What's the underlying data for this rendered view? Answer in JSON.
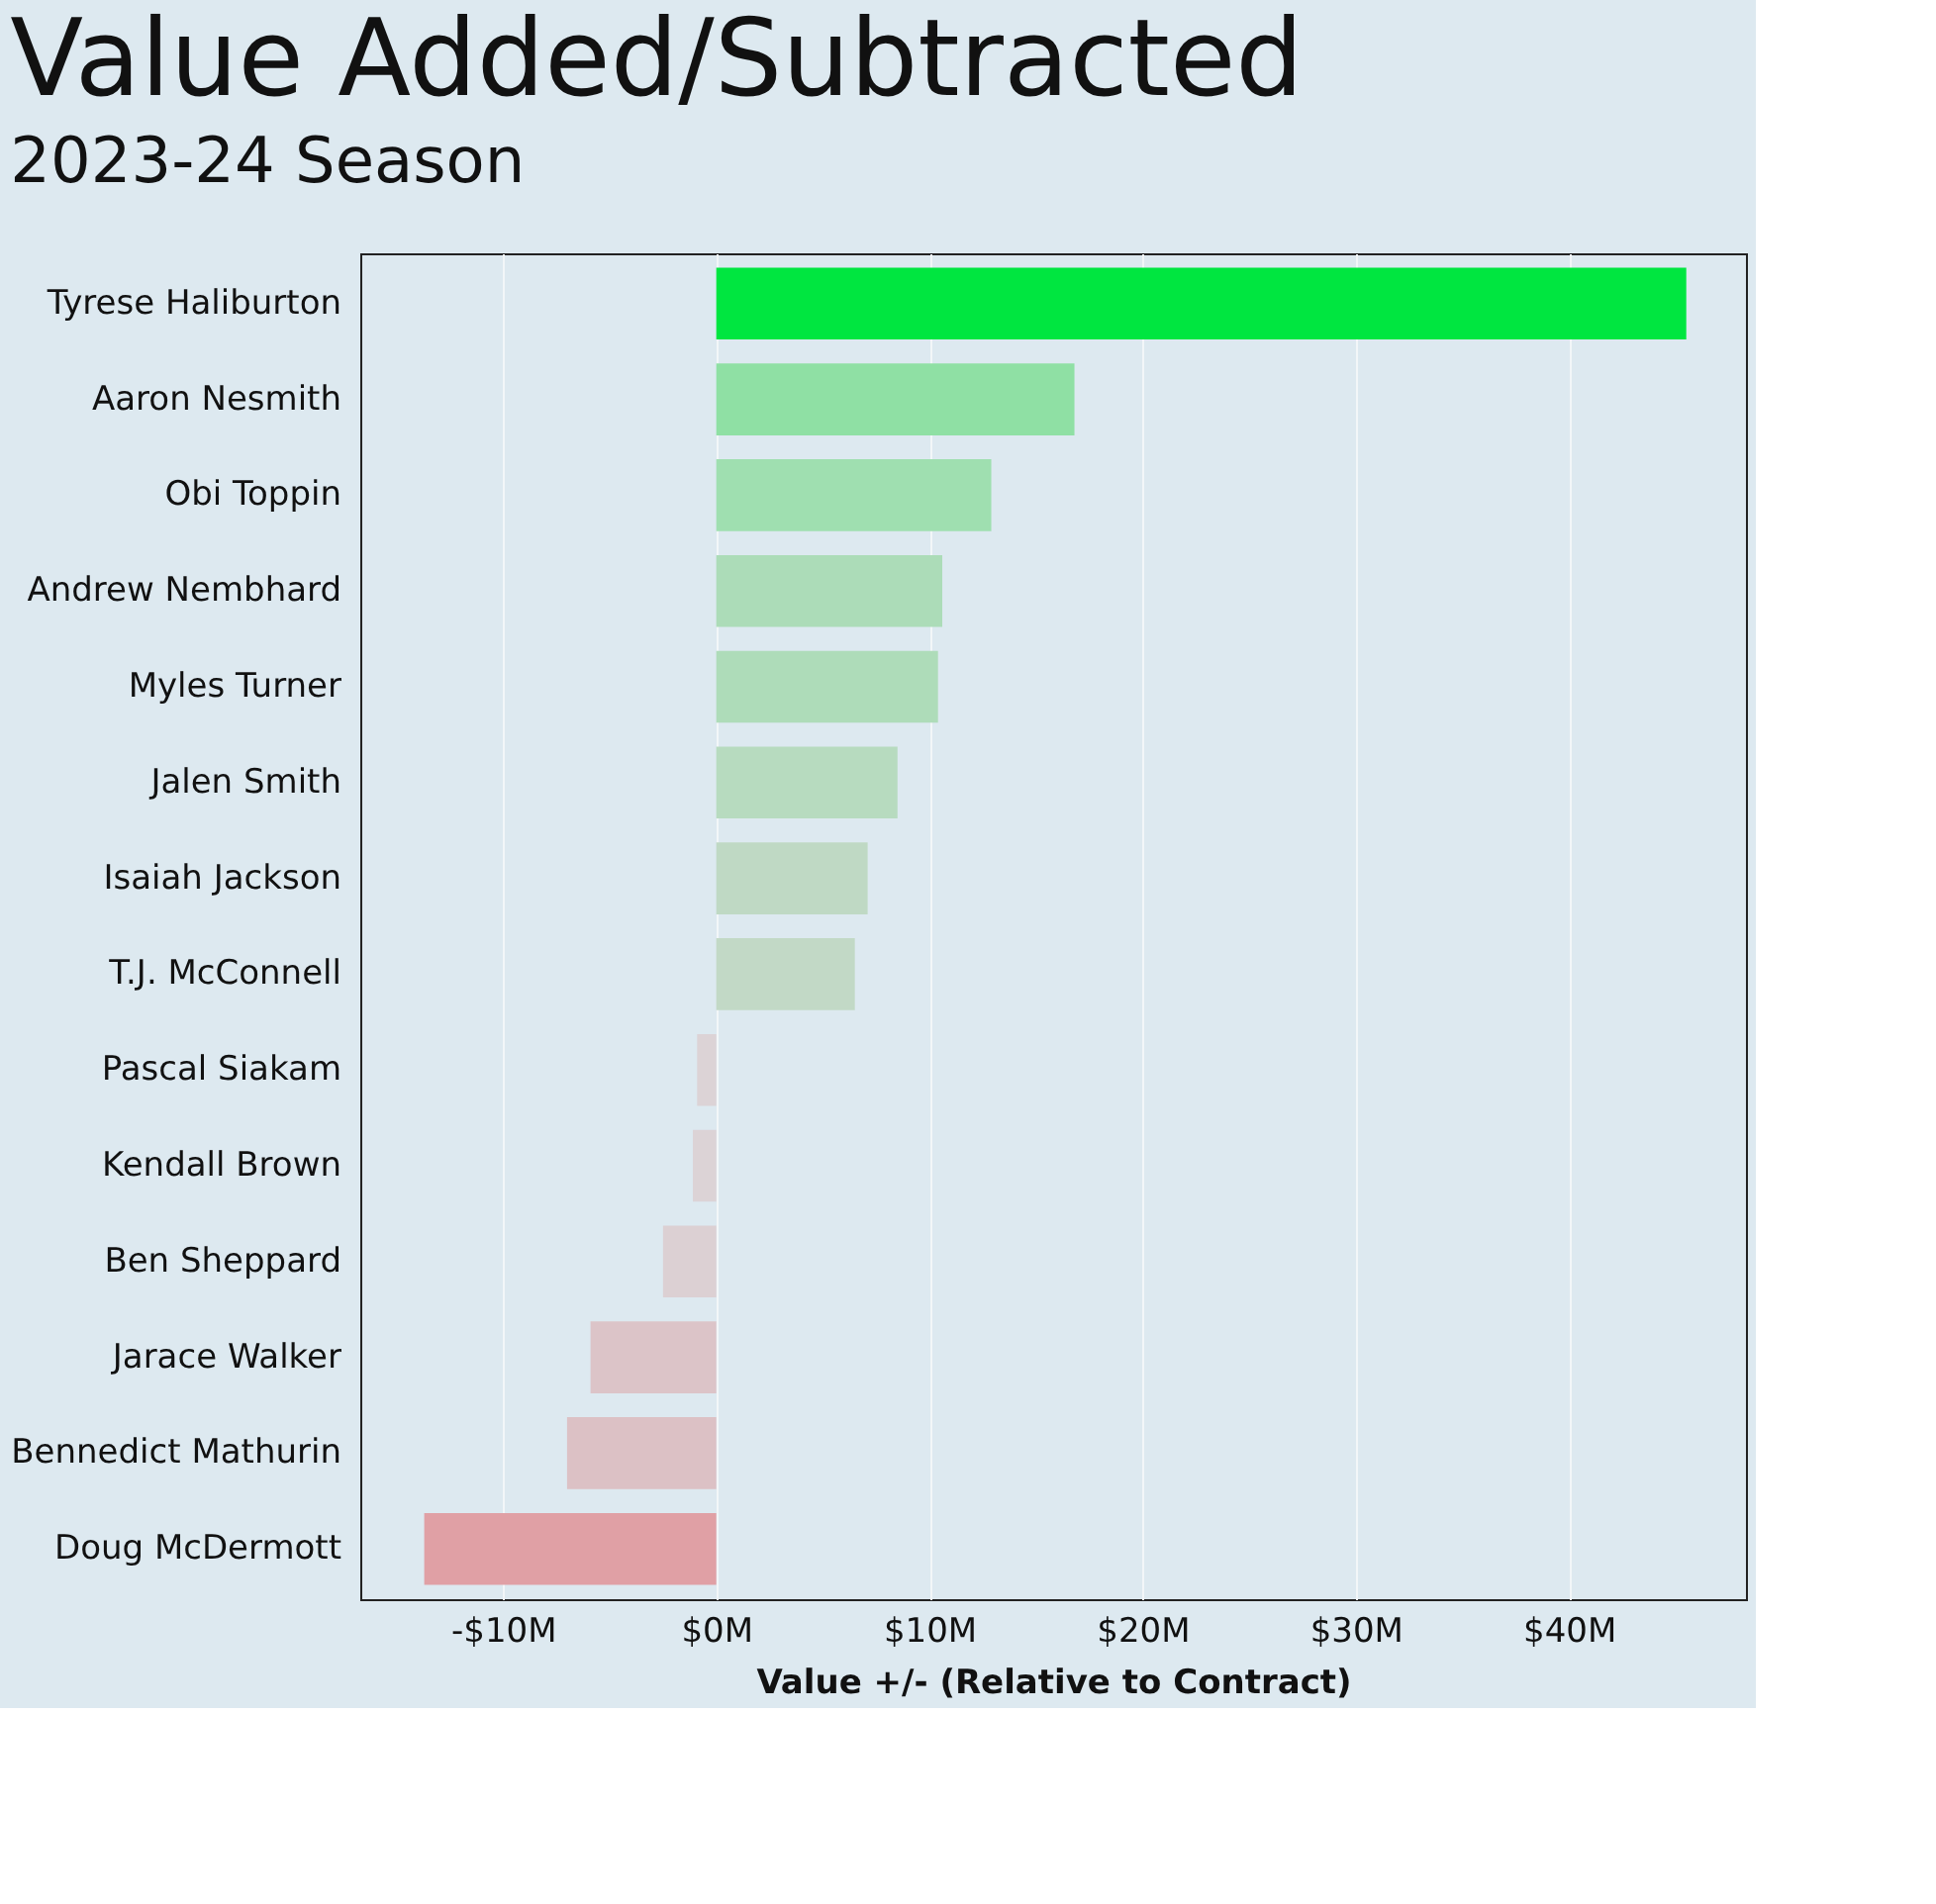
{
  "chart_data": {
    "type": "bar",
    "orientation": "horizontal",
    "title": "Value Added/Subtracted",
    "subtitle": "2023-24 Season",
    "xlabel": "Value +/- (Relative to Contract)",
    "categories": [
      "Tyrese Haliburton",
      "Aaron Nesmith",
      "Obi Toppin",
      "Andrew Nembhard",
      "Myles Turner",
      "Jalen Smith",
      "Isaiah Jackson",
      "T.J. McConnell",
      "Pascal Siakam",
      "Kendall Brown",
      "Ben Sheppard",
      "Jarace Walker",
      "Bennedict Mathurin",
      "Doug McDermott"
    ],
    "values": [
      45.5,
      16.8,
      12.9,
      10.6,
      10.4,
      8.5,
      7.1,
      6.5,
      -0.9,
      -1.1,
      -2.5,
      -5.9,
      -7.0,
      -13.7
    ],
    "colors": [
      "#00e640",
      "#8fe0a4",
      "#9fdfb0",
      "#acdcb8",
      "#aedcb9",
      "#b7dbbf",
      "#bfd9c4",
      "#c2d9c6",
      "#dcd3d6",
      "#dcd3d6",
      "#dcd0d3",
      "#dcc4c8",
      "#dcc1c5",
      "#e0a0a5"
    ],
    "xlim": [
      -16.7,
      48.3
    ],
    "xticks": [
      {
        "value": -10,
        "label": "-$10M"
      },
      {
        "value": 0,
        "label": "$0M"
      },
      {
        "value": 10,
        "label": "$10M"
      },
      {
        "value": 20,
        "label": "$20M"
      },
      {
        "value": 30,
        "label": "$30M"
      },
      {
        "value": 40,
        "label": "$40M"
      }
    ],
    "grid": "x",
    "legend": false
  }
}
